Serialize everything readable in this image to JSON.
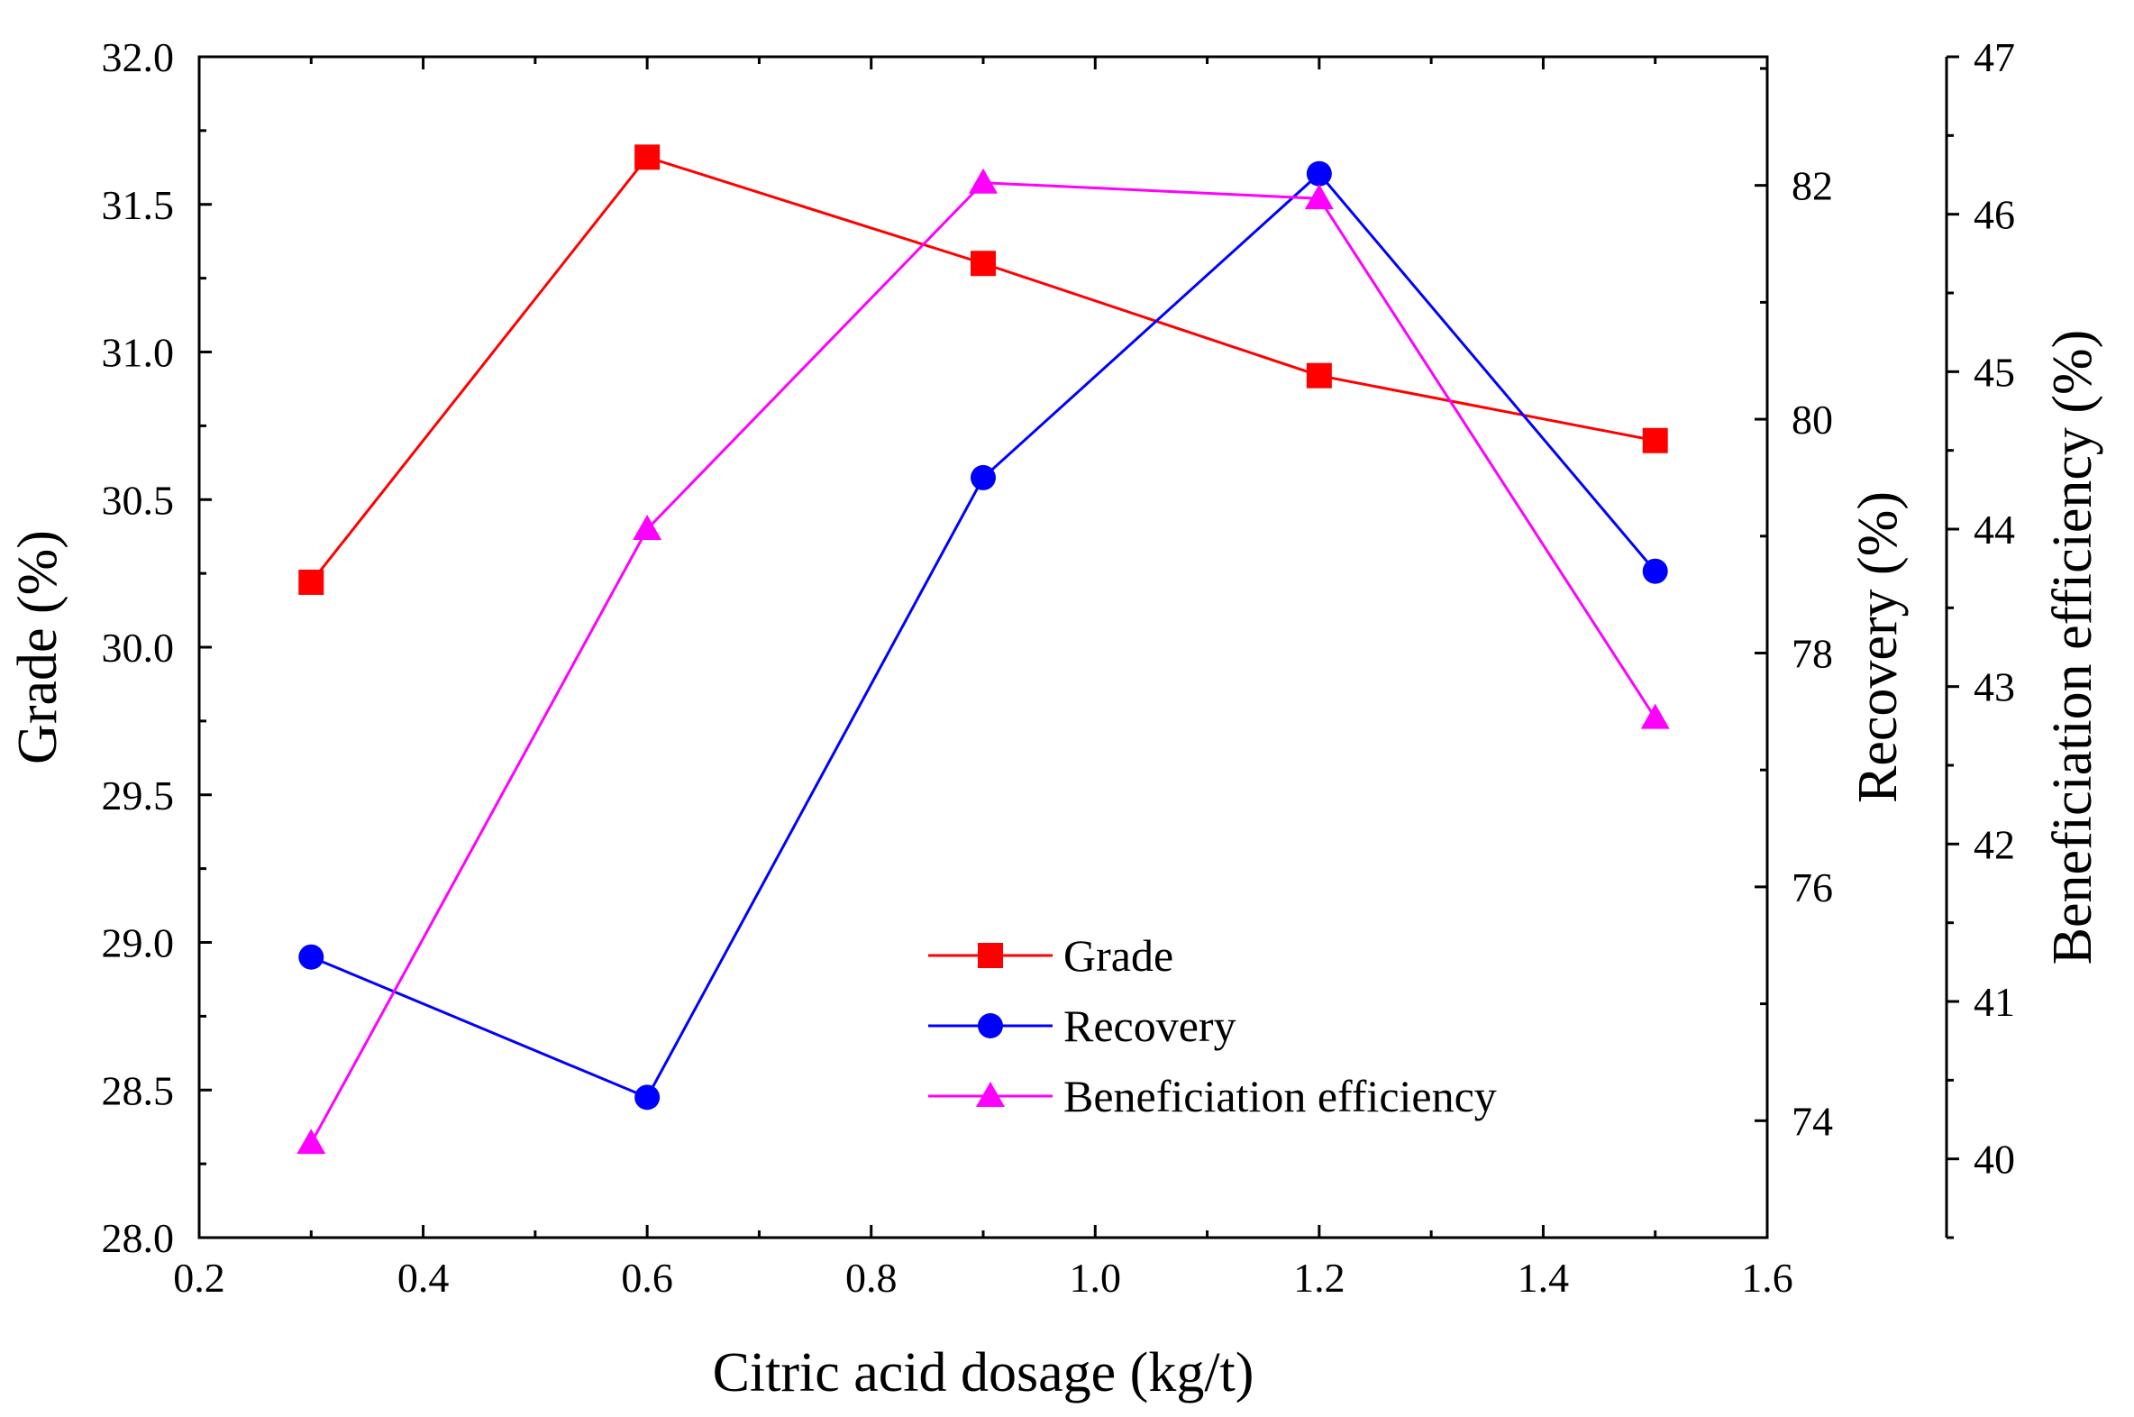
{
  "chart_data": {
    "type": "line",
    "x": [
      0.3,
      0.6,
      0.9,
      1.2,
      1.5
    ],
    "xlabel": "Citric acid dosage (kg/t)",
    "xlim": [
      0.2,
      1.6
    ],
    "xticks": [
      "0.2",
      "0.4",
      "0.6",
      "0.8",
      "1.0",
      "1.2",
      "1.4",
      "1.6"
    ],
    "axes": {
      "grade": {
        "label": "Grade (%)",
        "lim": [
          28.0,
          32.0
        ],
        "ticks": [
          "28.0",
          "28.5",
          "29.0",
          "29.5",
          "30.0",
          "30.5",
          "31.0",
          "31.5",
          "32.0"
        ]
      },
      "recovery": {
        "label": "Recovery (%)",
        "lim": [
          73.0,
          83.1
        ],
        "ticks": [
          "74",
          "76",
          "78",
          "80",
          "82"
        ]
      },
      "efficiency": {
        "label": "Beneficiation efficiency (%)",
        "lim": [
          39.5,
          47.0
        ],
        "ticks": [
          "40",
          "41",
          "42",
          "43",
          "44",
          "45",
          "46",
          "47"
        ]
      }
    },
    "series": [
      {
        "name": "Grade",
        "axis": "grade",
        "color": "#ff0000",
        "marker": "square",
        "values": [
          30.22,
          31.66,
          31.3,
          30.92,
          30.7
        ]
      },
      {
        "name": "Recovery",
        "axis": "recovery",
        "color": "#0000ff",
        "marker": "circle",
        "values": [
          75.4,
          74.2,
          79.5,
          82.1,
          78.7
        ]
      },
      {
        "name": "Beneficiation efficiency",
        "axis": "efficiency",
        "color": "#ff00ff",
        "marker": "triangle",
        "values": [
          40.1,
          44.0,
          46.2,
          46.1,
          42.8
        ]
      }
    ],
    "legend_position": "bottom-center",
    "grid": false
  }
}
